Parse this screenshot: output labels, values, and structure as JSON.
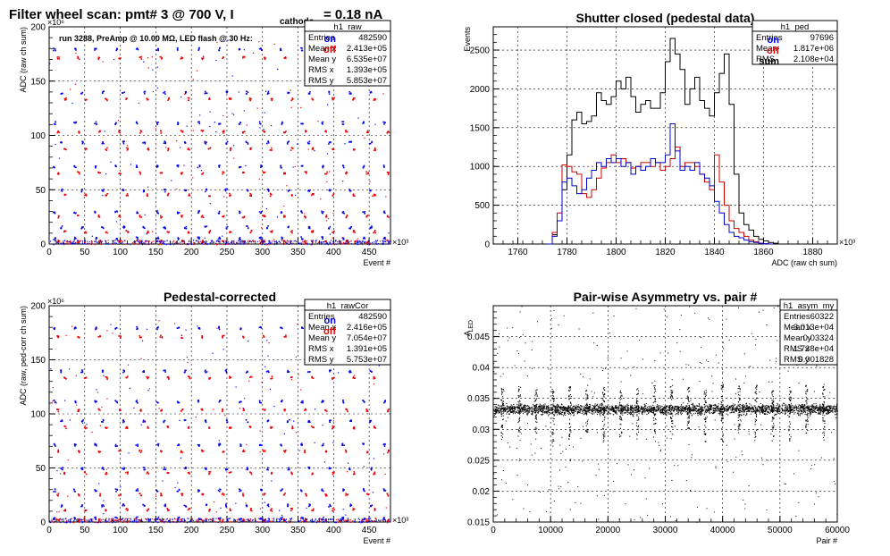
{
  "colors": {
    "on": "#0000ee",
    "off": "#ee0000",
    "sum": "#000000",
    "grid": "#000000"
  },
  "chart_data": [
    {
      "id": "raw",
      "type": "scatter",
      "title_parts": {
        "main": "Filter wheel scan: pmt#   3 @   700 V, I",
        "sub": "cathode",
        "tail": "= 0.18 nA"
      },
      "annotation": "run 3288, PreAmp @ 10.00 MΩ, LED flash @   30 Hz:",
      "xlabel": "Event #",
      "ylabel": "ADC (raw ch sum)",
      "x_exponent": "×10³",
      "y_exponent": "×10⁶",
      "xlim": [
        0,
        480
      ],
      "ylim": [
        0,
        200
      ],
      "xticks": [
        "0",
        "50",
        "100",
        "150",
        "200",
        "250",
        "300",
        "350",
        "400",
        "450"
      ],
      "yticks": [
        "0",
        "50",
        "100",
        "150",
        "200"
      ],
      "legend": [
        {
          "name": "on",
          "color": "#0000ee"
        },
        {
          "name": "off",
          "color": "#ee0000"
        }
      ],
      "stats": {
        "name": "h1_raw",
        "rows": [
          [
            "Entries",
            "482590"
          ],
          [
            "Mean x",
            "2.413e+05"
          ],
          [
            "Mean y",
            "6.535e+07"
          ],
          [
            "RMS x",
            "1.393e+05"
          ],
          [
            "RMS y",
            "5.853e+07"
          ]
        ]
      },
      "levels": [
        {
          "series": "on",
          "y": 180
        },
        {
          "series": "off",
          "y": 172
        },
        {
          "series": "on",
          "y": 140
        },
        {
          "series": "off",
          "y": 134
        },
        {
          "series": "on",
          "y": 112
        },
        {
          "series": "off",
          "y": 104
        },
        {
          "series": "on",
          "y": 94
        },
        {
          "series": "off",
          "y": 88
        },
        {
          "series": "on",
          "y": 72
        },
        {
          "series": "off",
          "y": 66
        },
        {
          "series": "on",
          "y": 50
        },
        {
          "series": "off",
          "y": 46
        },
        {
          "series": "on",
          "y": 30
        },
        {
          "series": "off",
          "y": 26
        },
        {
          "series": "on",
          "y": 16
        },
        {
          "series": "off",
          "y": 12
        },
        {
          "series": "on",
          "y": 6
        },
        {
          "series": "off",
          "y": 3
        }
      ],
      "grid": true
    },
    {
      "id": "ped",
      "type": "line",
      "title": "Shutter closed (pedestal data)",
      "xlabel": "ADC (raw ch sum)",
      "ylabel": "Events",
      "x_exponent": "×10³",
      "xlim": [
        1750,
        1890
      ],
      "ylim": [
        0,
        2800
      ],
      "xticks": [
        "1760",
        "1780",
        "1800",
        "1820",
        "1840",
        "1860",
        "1880"
      ],
      "yticks": [
        "0",
        "500",
        "1000",
        "1500",
        "2000",
        "2500"
      ],
      "legend": [
        {
          "name": "on",
          "color": "#0000ee"
        },
        {
          "name": "off",
          "color": "#ee0000"
        },
        {
          "name": "sum",
          "color": "#000000"
        }
      ],
      "stats": {
        "name": "h1_ped",
        "rows": [
          [
            "Entries",
            "97696"
          ],
          [
            "Mean",
            "1.817e+06"
          ],
          [
            "RMS",
            "2.108e+04"
          ]
        ]
      },
      "series": [
        {
          "name": "sum",
          "color": "#000000",
          "bins": [
            1772,
            1774,
            1776,
            1778,
            1780,
            1782,
            1784,
            1786,
            1788,
            1790,
            1792,
            1794,
            1796,
            1798,
            1800,
            1802,
            1804,
            1806,
            1808,
            1810,
            1812,
            1814,
            1816,
            1818,
            1820,
            1822,
            1824,
            1826,
            1828,
            1830,
            1832,
            1834,
            1836,
            1838,
            1840,
            1842,
            1844,
            1846,
            1848,
            1850,
            1852,
            1854,
            1856,
            1858,
            1860,
            1862,
            1864,
            1866,
            1868
          ],
          "values": [
            0,
            120,
            300,
            700,
            1150,
            1600,
            1700,
            1550,
            1580,
            1650,
            1950,
            1850,
            1800,
            1900,
            2100,
            2000,
            2150,
            1900,
            1700,
            1800,
            1850,
            1750,
            1750,
            1950,
            2350,
            2650,
            2450,
            2250,
            1800,
            2000,
            2150,
            1850,
            1750,
            1650,
            1950,
            2200,
            2450,
            1800,
            900,
            400,
            250,
            180,
            100,
            60,
            40,
            20,
            10,
            0
          ]
        },
        {
          "name": "off",
          "color": "#cc0000",
          "bins": [
            1772,
            1774,
            1776,
            1778,
            1780,
            1782,
            1784,
            1786,
            1788,
            1790,
            1792,
            1794,
            1796,
            1798,
            1800,
            1802,
            1804,
            1806,
            1808,
            1810,
            1812,
            1814,
            1816,
            1818,
            1820,
            1822,
            1824,
            1826,
            1828,
            1830,
            1832,
            1834,
            1836,
            1838,
            1840,
            1842,
            1844,
            1846,
            1848,
            1850,
            1852,
            1854,
            1856,
            1858,
            1860,
            1862,
            1864
          ],
          "values": [
            0,
            150,
            400,
            1020,
            1000,
            930,
            900,
            650,
            600,
            700,
            850,
            980,
            1050,
            1150,
            1050,
            1100,
            1050,
            980,
            1000,
            1050,
            1050,
            1000,
            1050,
            950,
            1000,
            1100,
            1250,
            1000,
            1050,
            1050,
            1000,
            900,
            800,
            700,
            1150,
            800,
            500,
            300,
            200,
            150,
            100,
            50,
            30,
            10,
            5,
            0
          ]
        },
        {
          "name": "on",
          "color": "#0000cc",
          "bins": [
            1772,
            1774,
            1776,
            1778,
            1780,
            1782,
            1784,
            1786,
            1788,
            1790,
            1792,
            1794,
            1796,
            1798,
            1800,
            1802,
            1804,
            1806,
            1808,
            1810,
            1812,
            1814,
            1816,
            1818,
            1820,
            1822,
            1824,
            1826,
            1828,
            1830,
            1832,
            1834,
            1836,
            1838,
            1840,
            1842,
            1844,
            1846,
            1848,
            1850,
            1852,
            1854,
            1856,
            1858,
            1860,
            1862,
            1864
          ],
          "values": [
            0,
            100,
            300,
            800,
            850,
            750,
            650,
            700,
            850,
            950,
            1050,
            1000,
            1100,
            1050,
            1100,
            1000,
            1050,
            900,
            1000,
            950,
            1000,
            1100,
            1050,
            1050,
            1150,
            1550,
            1200,
            950,
            1000,
            950,
            1050,
            900,
            850,
            750,
            550,
            400,
            250,
            150,
            100,
            80,
            50,
            30,
            20,
            10,
            5,
            0
          ]
        }
      ],
      "grid": true
    },
    {
      "id": "rawcor",
      "type": "scatter",
      "title": "Pedestal-corrected",
      "xlabel": "Event #",
      "ylabel": "ADC (raw, ped-corr ch sum)",
      "x_exponent": "×10³",
      "y_exponent": "×10⁶",
      "xlim": [
        0,
        480
      ],
      "ylim": [
        0,
        200
      ],
      "xticks": [
        "0",
        "50",
        "100",
        "150",
        "200",
        "250",
        "300",
        "350",
        "400",
        "450"
      ],
      "yticks": [
        "0",
        "50",
        "100",
        "150",
        "200"
      ],
      "legend": [
        {
          "name": "on",
          "color": "#0000ee"
        },
        {
          "name": "off",
          "color": "#ee0000"
        }
      ],
      "stats": {
        "name": "h1_rawCor",
        "rows": [
          [
            "Entries",
            "482590"
          ],
          [
            "Mean x",
            "2.416e+05"
          ],
          [
            "Mean y",
            "7.054e+07"
          ],
          [
            "RMS x",
            "1.391e+05"
          ],
          [
            "RMS y",
            "5.753e+07"
          ]
        ]
      },
      "levels": [
        {
          "series": "on",
          "y": 180
        },
        {
          "series": "off",
          "y": 172
        },
        {
          "series": "on",
          "y": 140
        },
        {
          "series": "off",
          "y": 134
        },
        {
          "series": "on",
          "y": 112
        },
        {
          "series": "off",
          "y": 104
        },
        {
          "series": "on",
          "y": 94
        },
        {
          "series": "off",
          "y": 88
        },
        {
          "series": "on",
          "y": 72
        },
        {
          "series": "off",
          "y": 66
        },
        {
          "series": "on",
          "y": 50
        },
        {
          "series": "off",
          "y": 46
        },
        {
          "series": "on",
          "y": 30
        },
        {
          "series": "off",
          "y": 26
        },
        {
          "series": "on",
          "y": 16
        },
        {
          "series": "off",
          "y": 12
        },
        {
          "series": "on",
          "y": 4
        },
        {
          "series": "off",
          "y": 2
        }
      ],
      "grid": true
    },
    {
      "id": "asym",
      "type": "scatter",
      "title": "Pair-wise Asymmetry vs. pair #",
      "xlabel": "Pair #",
      "ylabel_main": "A",
      "ylabel_sub": "LED",
      "xlim": [
        0,
        60000
      ],
      "ylim": [
        0.015,
        0.05
      ],
      "xticks": [
        "0",
        "10000",
        "20000",
        "30000",
        "40000",
        "50000",
        "60000"
      ],
      "yticks": [
        "0.015",
        "0.02",
        "0.025",
        "0.03",
        "0.035",
        "0.04",
        "0.045"
      ],
      "stats": {
        "name": "h1_asym_my",
        "rows": [
          [
            "Entries",
            "60322"
          ],
          [
            "Mean x",
            "3.013e+04"
          ],
          [
            "Mean y",
            "0.03324"
          ],
          [
            "RMS x",
            "1.738e+04"
          ],
          [
            "RMS y",
            "0.001828"
          ]
        ]
      },
      "band": {
        "center": 0.0333,
        "halfwidth": 0.0006
      },
      "grid": true
    }
  ]
}
